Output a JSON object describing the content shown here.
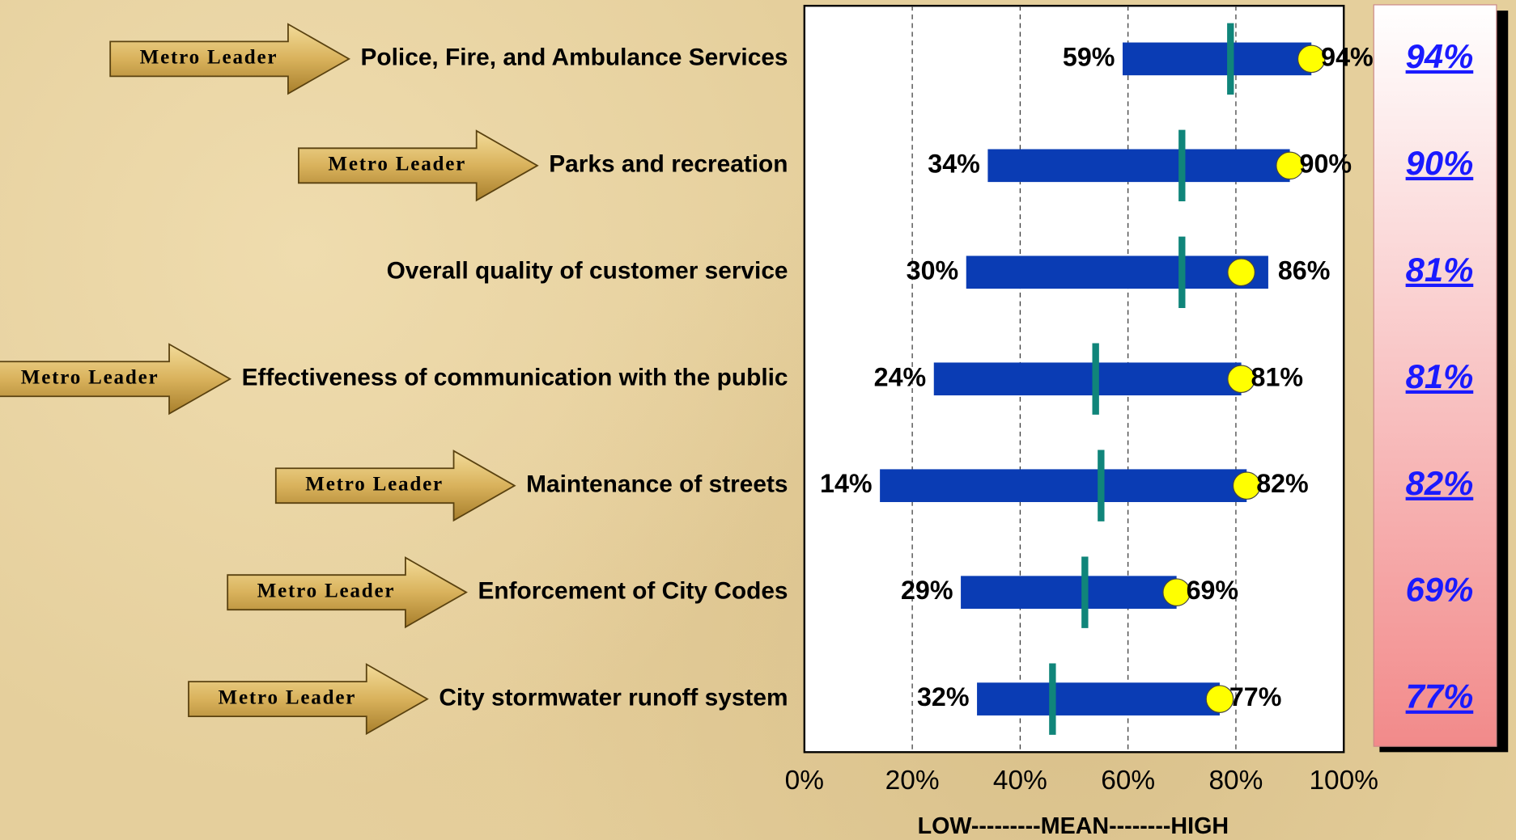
{
  "chart_data": {
    "type": "range",
    "categories": [
      "Police, Fire, and Ambulance Services",
      "Parks and recreation",
      "Overall quality of customer service",
      "Effectiveness of communication with the public",
      "Maintenance of streets",
      "Enforcement of City Codes",
      "City stormwater runoff system"
    ],
    "badges": [
      "Metro Leader",
      "Metro Leader",
      null,
      "Metro Leader",
      "Metro Leader",
      "Metro Leader",
      "Metro Leader"
    ],
    "series": [
      {
        "name": "Low",
        "color": "#0a3cb4",
        "values": [
          59,
          34,
          30,
          24,
          14,
          29,
          32
        ],
        "value_labels": [
          "59%",
          "34%",
          "30%",
          "24%",
          "14%",
          "29%",
          "32%"
        ]
      },
      {
        "name": "High",
        "color": "#0a3cb4",
        "values": [
          94,
          90,
          86,
          81,
          82,
          69,
          77
        ],
        "value_labels": [
          "94%",
          "90%",
          "86%",
          "81%",
          "82%",
          "69%",
          "77%"
        ]
      },
      {
        "name": "Mean",
        "color": "#10857a",
        "values": [
          79,
          70,
          70,
          54,
          55,
          52,
          46
        ]
      },
      {
        "name": "City",
        "color": "#ffff00",
        "values": [
          94,
          90,
          81,
          81,
          82,
          69,
          77
        ],
        "value_labels": [
          "94%",
          "90%",
          "81%",
          "81%",
          "82%",
          "69%",
          "77%"
        ],
        "underlined": [
          true,
          true,
          true,
          true,
          true,
          false,
          true
        ]
      }
    ],
    "xlim": [
      0,
      100
    ],
    "xticks": [
      {
        "value": 0,
        "label": "0%"
      },
      {
        "value": 20,
        "label": "20%"
      },
      {
        "value": 40,
        "label": "40%"
      },
      {
        "value": 60,
        "label": "60%"
      },
      {
        "value": 80,
        "label": "80%"
      },
      {
        "value": 100,
        "label": "100%"
      }
    ],
    "xlabel": "LOW---------MEAN--------HIGH",
    "grid": true
  }
}
